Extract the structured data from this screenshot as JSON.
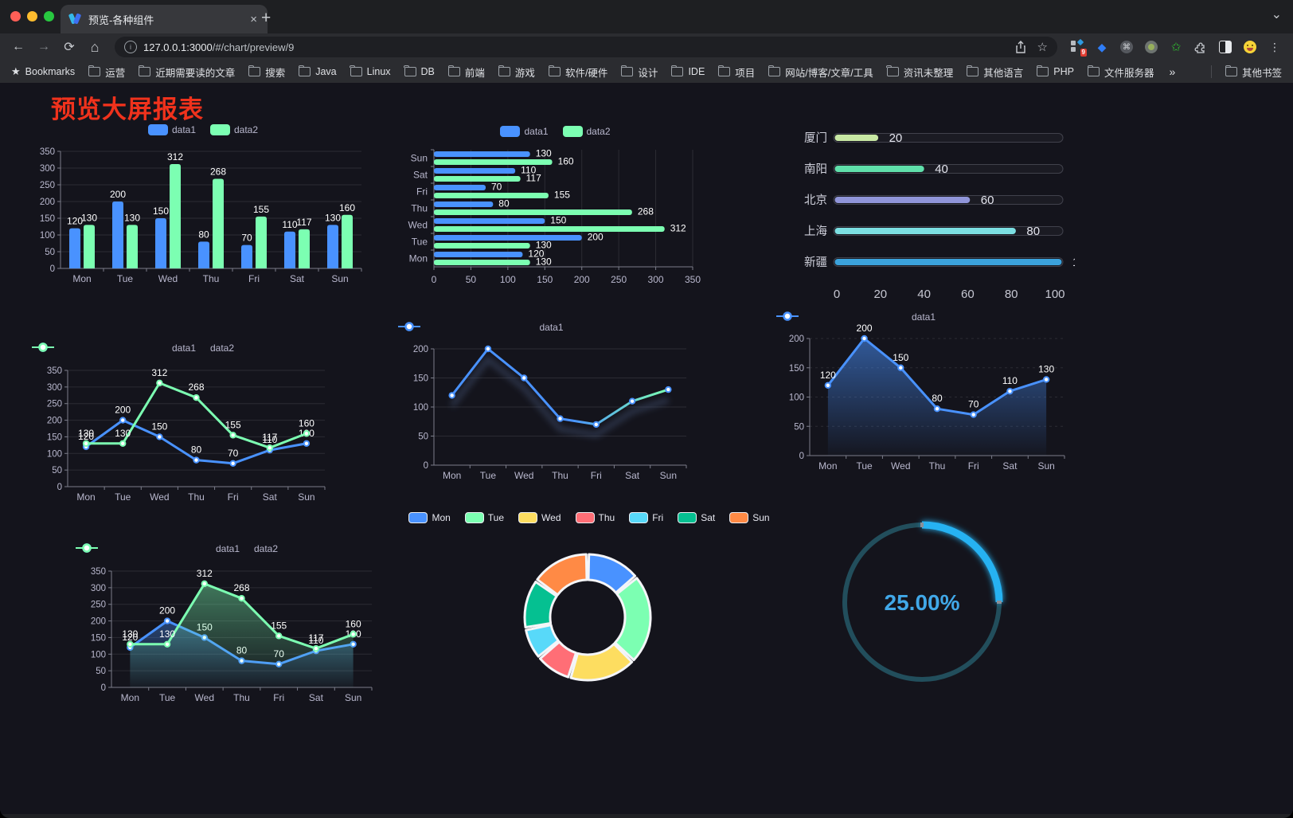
{
  "browser": {
    "tab_title": "预览-各种组件",
    "url_host": "127.0.0.1:3000",
    "url_path": "/#/chart/preview/9",
    "new_tab_label": "+",
    "close_tab_label": "×",
    "extension_badge": "9",
    "bookmarks_bar": {
      "root_label": "Bookmarks",
      "folders": [
        "运营",
        "近期需要读的文章",
        "搜索",
        "Java",
        "Linux",
        "DB",
        "前端",
        "游戏",
        "软件/硬件",
        "设计",
        "IDE",
        "项目",
        "网站/博客/文章/工具",
        "资讯未整理",
        "其他语言",
        "PHP",
        "文件服务器"
      ],
      "overflow_label": "»",
      "other_bookmarks_label": "其他书签"
    }
  },
  "page": {
    "title": "预览大屏报表"
  },
  "chart_data": [
    {
      "id": "c1",
      "type": "bar",
      "categories": [
        "Mon",
        "Tue",
        "Wed",
        "Thu",
        "Fri",
        "Sat",
        "Sun"
      ],
      "series": [
        {
          "name": "data1",
          "color": "#4992ff",
          "values": [
            120,
            200,
            150,
            80,
            70,
            110,
            130
          ]
        },
        {
          "name": "data2",
          "color": "#7cffb2",
          "values": [
            130,
            130,
            312,
            268,
            155,
            117,
            160
          ]
        }
      ],
      "ylim": [
        0,
        350
      ],
      "ytick": 50,
      "legend_position": "top",
      "grid": true
    },
    {
      "id": "c2",
      "type": "hbar",
      "categories": [
        "Mon",
        "Tue",
        "Wed",
        "Thu",
        "Fri",
        "Sat",
        "Sun"
      ],
      "series": [
        {
          "name": "data1",
          "color": "#4992ff",
          "values": [
            120,
            200,
            150,
            80,
            70,
            110,
            130
          ]
        },
        {
          "name": "data2",
          "color": "#7cffb2",
          "values": [
            130,
            130,
            312,
            268,
            155,
            117,
            160
          ]
        }
      ],
      "xlim": [
        0,
        350
      ],
      "xtick": 50,
      "legend_position": "top",
      "grid": true
    },
    {
      "id": "c3",
      "type": "progress",
      "rows": [
        {
          "label": "厦门",
          "value": 20,
          "color": "#c8e8a4"
        },
        {
          "label": "南阳",
          "value": 40,
          "color": "#60e0ab"
        },
        {
          "label": "北京",
          "value": 60,
          "color": "#9095d9"
        },
        {
          "label": "上海",
          "value": 80,
          "color": "#7cdfe2"
        },
        {
          "label": "新疆",
          "value": 100,
          "color": "#3ba2dc"
        }
      ],
      "xlim": [
        0,
        100
      ],
      "xticks": [
        0,
        20,
        40,
        60,
        80,
        100
      ]
    },
    {
      "id": "c4",
      "type": "line",
      "categories": [
        "Mon",
        "Tue",
        "Wed",
        "Thu",
        "Fri",
        "Sat",
        "Sun"
      ],
      "series": [
        {
          "name": "data1",
          "color": "#4992ff",
          "values": [
            120,
            200,
            150,
            80,
            70,
            110,
            130
          ]
        },
        {
          "name": "data2",
          "color": "#7cffb2",
          "values": [
            130,
            130,
            312,
            268,
            155,
            117,
            160
          ]
        }
      ],
      "ylim": [
        0,
        350
      ],
      "ytick": 50,
      "point_labels": true,
      "legend_position": "top"
    },
    {
      "id": "c5",
      "type": "line",
      "categories": [
        "Mon",
        "Tue",
        "Wed",
        "Thu",
        "Fri",
        "Sat",
        "Sun"
      ],
      "series": [
        {
          "name": "data1",
          "color": "#4992ff",
          "gradient_to": "#7cffb2",
          "values": [
            120,
            200,
            150,
            80,
            70,
            110,
            130
          ]
        }
      ],
      "ylim": [
        0,
        200
      ],
      "ytick": 50,
      "point_labels": false,
      "shadow": true,
      "legend_position": "top"
    },
    {
      "id": "c6",
      "type": "line",
      "categories": [
        "Mon",
        "Tue",
        "Wed",
        "Thu",
        "Fri",
        "Sat",
        "Sun"
      ],
      "series": [
        {
          "name": "data1",
          "color": "#4992ff",
          "area_opacity": 0.55,
          "values": [
            120,
            200,
            150,
            80,
            70,
            110,
            130
          ]
        }
      ],
      "ylim": [
        0,
        200
      ],
      "ytick": 50,
      "point_labels": true,
      "dashed_grid": true,
      "legend_position": "top"
    },
    {
      "id": "c7",
      "type": "line",
      "categories": [
        "Mon",
        "Tue",
        "Wed",
        "Thu",
        "Fri",
        "Sat",
        "Sun"
      ],
      "series": [
        {
          "name": "data1",
          "color": "#4992ff",
          "area_opacity": 0.38,
          "values": [
            120,
            200,
            150,
            80,
            70,
            110,
            130
          ]
        },
        {
          "name": "data2",
          "color": "#7cffb2",
          "area_opacity": 0.42,
          "values": [
            130,
            130,
            312,
            268,
            155,
            117,
            160
          ]
        }
      ],
      "ylim": [
        0,
        350
      ],
      "ytick": 50,
      "point_labels": true,
      "legend_position": "top"
    },
    {
      "id": "c8",
      "type": "donut",
      "items": [
        {
          "name": "Mon",
          "value": 120,
          "color": "#4992ff"
        },
        {
          "name": "Tue",
          "value": 200,
          "color": "#7cffb2"
        },
        {
          "name": "Wed",
          "value": 150,
          "color": "#fddd60"
        },
        {
          "name": "Thu",
          "value": 80,
          "color": "#ff6e76"
        },
        {
          "name": "Fri",
          "value": 70,
          "color": "#58d9f9"
        },
        {
          "name": "Sat",
          "value": 110,
          "color": "#05c091"
        },
        {
          "name": "Sun",
          "value": 130,
          "color": "#ff8a45"
        }
      ],
      "legend_position": "top"
    },
    {
      "id": "c9",
      "type": "gauge",
      "value_percent": 25,
      "label": "25.00%",
      "ring_color": "#224e5c",
      "arc_color": "#27b2f2",
      "text_color": "#41a8e8"
    }
  ]
}
